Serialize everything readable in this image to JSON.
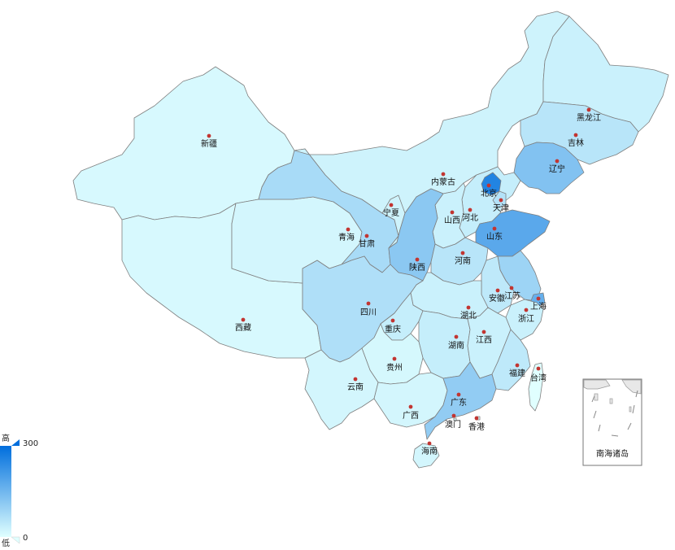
{
  "map": {
    "color_low": "#e0ffff",
    "color_high": "#006edd",
    "border_color": "#7f7f7f",
    "dot_color": "#c23531",
    "provinces": [
      {
        "id": "xinjiang",
        "name": "新疆",
        "level": 0.04
      },
      {
        "id": "xizang",
        "name": "西藏",
        "level": 0.04
      },
      {
        "id": "qinghai",
        "name": "青海",
        "level": 0.06
      },
      {
        "id": "gansu",
        "name": "甘肃",
        "level": 0.25
      },
      {
        "id": "neimenggu",
        "name": "内蒙古",
        "level": 0.08
      },
      {
        "id": "heilongjiang",
        "name": "黑龙江",
        "level": 0.1
      },
      {
        "id": "jilin",
        "name": "吉林",
        "level": 0.18
      },
      {
        "id": "liaoning",
        "name": "辽宁",
        "level": 0.42
      },
      {
        "id": "beijing",
        "name": "北京",
        "level": 0.85
      },
      {
        "id": "tianjin",
        "name": "天津",
        "level": 0.2
      },
      {
        "id": "hebei",
        "name": "河北",
        "level": 0.12
      },
      {
        "id": "shanxi",
        "name": "山西",
        "level": 0.1
      },
      {
        "id": "shandong",
        "name": "山东",
        "level": 0.6
      },
      {
        "id": "ningxia",
        "name": "宁夏",
        "level": 0.08
      },
      {
        "id": "shaanxi",
        "name": "陕西",
        "level": 0.38
      },
      {
        "id": "henan",
        "name": "河南",
        "level": 0.18
      },
      {
        "id": "jiangsu",
        "name": "江苏",
        "level": 0.3
      },
      {
        "id": "shanghai",
        "name": "上海",
        "level": 0.55
      },
      {
        "id": "anhui",
        "name": "安徽",
        "level": 0.15
      },
      {
        "id": "zhejiang",
        "name": "浙江",
        "level": 0.1
      },
      {
        "id": "hubei",
        "name": "湖北",
        "level": 0.1
      },
      {
        "id": "sichuan",
        "name": "四川",
        "level": 0.22
      },
      {
        "id": "chongqing",
        "name": "重庆",
        "level": 0.12
      },
      {
        "id": "hunan",
        "name": "湖南",
        "level": 0.12
      },
      {
        "id": "jiangxi",
        "name": "江西",
        "level": 0.1
      },
      {
        "id": "fujian",
        "name": "福建",
        "level": 0.15
      },
      {
        "id": "guizhou",
        "name": "贵州",
        "level": 0.05
      },
      {
        "id": "yunnan",
        "name": "云南",
        "level": 0.06
      },
      {
        "id": "guangxi",
        "name": "广西",
        "level": 0.06
      },
      {
        "id": "guangdong",
        "name": "广东",
        "level": 0.35
      },
      {
        "id": "hainan",
        "name": "海南",
        "level": 0.06
      },
      {
        "id": "taiwan",
        "name": "台湾",
        "level": 0.0
      },
      {
        "id": "xianggang",
        "name": "香港",
        "level": 0.0
      },
      {
        "id": "aomen",
        "name": "澳门",
        "level": 0.0
      }
    ],
    "inset_label": "南海诸岛"
  },
  "legend": {
    "high_text": "高",
    "low_text": "低",
    "max_value": "300",
    "min_value": "0"
  }
}
